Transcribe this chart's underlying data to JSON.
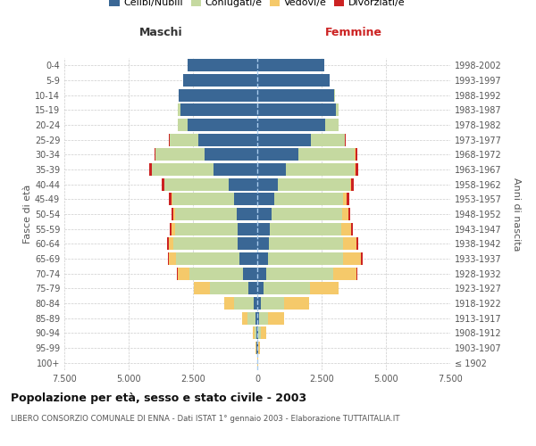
{
  "age_groups": [
    "100+",
    "95-99",
    "90-94",
    "85-89",
    "80-84",
    "75-79",
    "70-74",
    "65-69",
    "60-64",
    "55-59",
    "50-54",
    "45-49",
    "40-44",
    "35-39",
    "30-34",
    "25-29",
    "20-24",
    "15-19",
    "10-14",
    "5-9",
    "0-4"
  ],
  "birth_years": [
    "≤ 1902",
    "1903-1907",
    "1908-1912",
    "1913-1917",
    "1918-1922",
    "1923-1927",
    "1928-1932",
    "1933-1937",
    "1938-1942",
    "1943-1947",
    "1948-1952",
    "1953-1957",
    "1958-1962",
    "1963-1967",
    "1968-1972",
    "1973-1977",
    "1978-1982",
    "1983-1987",
    "1988-1992",
    "1993-1997",
    "1998-2002"
  ],
  "colors": {
    "celibe": "#3a6795",
    "coniugato": "#c5d9a0",
    "vedovo": "#f5c96a",
    "divorziato": "#cc2222"
  },
  "maschi": {
    "celibe": [
      10,
      20,
      30,
      80,
      150,
      330,
      550,
      700,
      750,
      760,
      800,
      900,
      1100,
      1700,
      2050,
      2300,
      2700,
      3000,
      3050,
      2870,
      2700
    ],
    "coniugato": [
      0,
      30,
      80,
      300,
      750,
      1500,
      2100,
      2450,
      2500,
      2450,
      2400,
      2400,
      2500,
      2400,
      1900,
      1100,
      380,
      80,
      20,
      10,
      5
    ],
    "vedovo": [
      0,
      10,
      50,
      200,
      400,
      650,
      450,
      280,
      200,
      130,
      70,
      50,
      20,
      10,
      5,
      5,
      5,
      0,
      0,
      0,
      0
    ],
    "divorziato": [
      0,
      0,
      0,
      0,
      0,
      0,
      20,
      50,
      60,
      70,
      80,
      80,
      80,
      80,
      50,
      30,
      10,
      5,
      0,
      0,
      0
    ]
  },
  "femmine": {
    "celibe": [
      10,
      20,
      50,
      80,
      130,
      250,
      350,
      430,
      450,
      480,
      550,
      650,
      800,
      1100,
      1600,
      2100,
      2650,
      3050,
      3000,
      2800,
      2600
    ],
    "coniugato": [
      0,
      30,
      100,
      350,
      900,
      1800,
      2600,
      2900,
      2900,
      2800,
      2750,
      2700,
      2800,
      2700,
      2200,
      1300,
      500,
      100,
      30,
      10,
      5
    ],
    "vedovo": [
      10,
      50,
      200,
      600,
      1000,
      1100,
      900,
      700,
      500,
      350,
      230,
      130,
      60,
      30,
      20,
      10,
      5,
      5,
      0,
      0,
      0
    ],
    "divorziato": [
      0,
      0,
      0,
      0,
      0,
      0,
      30,
      50,
      60,
      80,
      90,
      80,
      80,
      80,
      70,
      40,
      10,
      5,
      0,
      0,
      0
    ]
  },
  "title": "Popolazione per età, sesso e stato civile - 2003",
  "subtitle": "LIBERO CONSORZIO COMUNALE DI ENNA - Dati ISTAT 1° gennaio 2003 - Elaborazione TUTTAITALIA.IT",
  "xlabel_left": "Maschi",
  "xlabel_right": "Femmine",
  "ylabel_left": "Fasce di età",
  "ylabel_right": "Anni di nascita",
  "xlim": 7500,
  "background_color": "#ffffff",
  "grid_color": "#cccccc",
  "legend_labels": [
    "Celibi/Nubili",
    "Coniugati/e",
    "Vedovi/e",
    "Divorziati/e"
  ]
}
